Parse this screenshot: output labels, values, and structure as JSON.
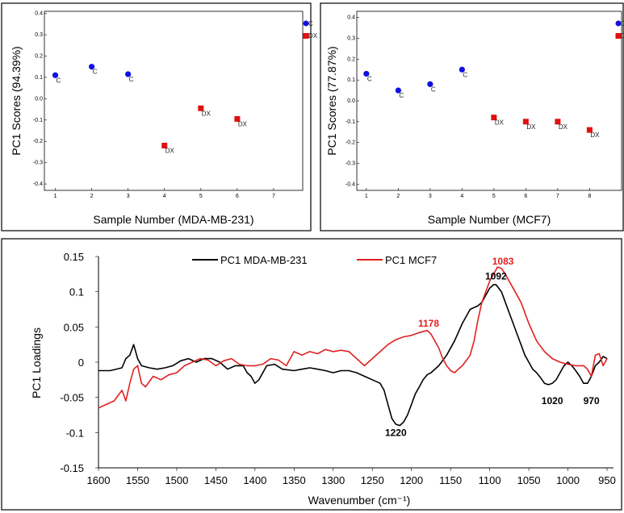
{
  "colors": {
    "control": "#1010e0",
    "dx": "#e01010",
    "mda": "#000000",
    "mcf7": "#e02020"
  },
  "chart_data": [
    {
      "type": "scatter",
      "xlabel": "Sample Number (MDA-MB-231)",
      "ylabel": "PC1 Scores (94.39%)",
      "xlim": [
        0.7,
        7.8
      ],
      "ylim": [
        -0.43,
        0.41
      ],
      "xticks": [
        "1",
        "2",
        "3",
        "4",
        "5",
        "6",
        "7"
      ],
      "yticks": [
        "0.4",
        "0.3",
        "0.2",
        "0.1",
        "0.0",
        "-0.1",
        "-0.2",
        "-0.3",
        "-0.4"
      ],
      "series": [
        {
          "name": "C",
          "x": [
            1,
            2,
            3
          ],
          "y": [
            0.11,
            0.15,
            0.115
          ]
        },
        {
          "name": "DX",
          "x": [
            4,
            5,
            6
          ],
          "y": [
            -0.22,
            -0.045,
            -0.095
          ]
        }
      ],
      "point_labels": {
        "C": "C",
        "DX": "DX"
      }
    },
    {
      "type": "scatter",
      "xlabel": "Sample Number (MCF7)",
      "ylabel": "PC1 Scores (77.87%)",
      "xlim": [
        0.7,
        8.8
      ],
      "ylim": [
        -0.43,
        0.43
      ],
      "xticks": [
        "1",
        "2",
        "3",
        "4",
        "5",
        "6",
        "7",
        "8"
      ],
      "yticks": [
        "0.4",
        "0.3",
        "0.2",
        "0.1",
        "0.0",
        "-0.1",
        "-0.2",
        "-0.3",
        "-0.4"
      ],
      "series": [
        {
          "name": "C",
          "x": [
            1,
            2,
            3,
            4
          ],
          "y": [
            0.13,
            0.05,
            0.08,
            0.15
          ]
        },
        {
          "name": "DX",
          "x": [
            5,
            6,
            7,
            8
          ],
          "y": [
            -0.08,
            -0.1,
            -0.1,
            -0.14
          ]
        }
      ],
      "point_labels": {
        "C": "C",
        "DX": "DX"
      }
    },
    {
      "type": "line",
      "xlabel": "Wavenumber (cm⁻¹)",
      "ylabel": "PC1 Loadings",
      "xlim": [
        1600,
        950
      ],
      "ylim": [
        -0.15,
        0.15
      ],
      "xticks": [
        "1600",
        "1550",
        "1500",
        "1450",
        "1400",
        "1350",
        "1300",
        "1250",
        "1200",
        "1150",
        "1100",
        "1050",
        "1000",
        "950"
      ],
      "yticks": [
        "0.15",
        "0.1",
        "0.05",
        "0",
        "-0.05",
        "-0.1",
        "-0.15"
      ],
      "legend_position": "top",
      "series": [
        {
          "name": "PC1 MDA-MB-231",
          "x": [
            1600,
            1585,
            1570,
            1565,
            1560,
            1555,
            1550,
            1545,
            1535,
            1525,
            1515,
            1505,
            1495,
            1485,
            1475,
            1465,
            1455,
            1445,
            1435,
            1425,
            1415,
            1410,
            1405,
            1400,
            1395,
            1385,
            1375,
            1365,
            1350,
            1340,
            1330,
            1320,
            1310,
            1300,
            1290,
            1280,
            1270,
            1260,
            1250,
            1240,
            1235,
            1230,
            1225,
            1220,
            1215,
            1210,
            1205,
            1200,
            1195,
            1190,
            1185,
            1180,
            1175,
            1165,
            1155,
            1145,
            1135,
            1125,
            1115,
            1110,
            1105,
            1100,
            1095,
            1092,
            1085,
            1080,
            1075,
            1070,
            1065,
            1060,
            1055,
            1050,
            1045,
            1040,
            1035,
            1030,
            1025,
            1020,
            1015,
            1010,
            1005,
            1000,
            995,
            990,
            985,
            980,
            975,
            970,
            965,
            960,
            955,
            950
          ],
          "y": [
            -0.012,
            -0.012,
            -0.008,
            0.005,
            0.01,
            0.025,
            0.005,
            -0.005,
            -0.008,
            -0.01,
            -0.008,
            -0.005,
            0.002,
            0.005,
            0.0,
            0.005,
            0.005,
            0.0,
            -0.01,
            -0.005,
            -0.005,
            -0.015,
            -0.02,
            -0.03,
            -0.025,
            -0.005,
            -0.003,
            -0.01,
            -0.012,
            -0.01,
            -0.008,
            -0.01,
            -0.012,
            -0.015,
            -0.012,
            -0.012,
            -0.015,
            -0.02,
            -0.025,
            -0.03,
            -0.04,
            -0.06,
            -0.08,
            -0.088,
            -0.09,
            -0.085,
            -0.075,
            -0.06,
            -0.045,
            -0.035,
            -0.025,
            -0.018,
            -0.015,
            -0.005,
            0.01,
            0.03,
            0.055,
            0.075,
            0.08,
            0.085,
            0.095,
            0.105,
            0.11,
            0.11,
            0.1,
            0.085,
            0.07,
            0.055,
            0.04,
            0.025,
            0.01,
            0.0,
            -0.01,
            -0.015,
            -0.022,
            -0.03,
            -0.032,
            -0.03,
            -0.025,
            -0.015,
            -0.005,
            0.0,
            -0.005,
            -0.012,
            -0.02,
            -0.03,
            -0.03,
            -0.02,
            -0.005,
            0.0,
            0.008,
            0.005
          ]
        },
        {
          "name": "PC1 MCF7",
          "x": [
            1600,
            1590,
            1580,
            1570,
            1565,
            1560,
            1555,
            1550,
            1545,
            1540,
            1530,
            1520,
            1510,
            1500,
            1490,
            1480,
            1470,
            1460,
            1450,
            1440,
            1430,
            1420,
            1410,
            1400,
            1390,
            1380,
            1370,
            1360,
            1350,
            1340,
            1330,
            1320,
            1310,
            1300,
            1290,
            1280,
            1270,
            1260,
            1250,
            1240,
            1230,
            1220,
            1210,
            1200,
            1190,
            1180,
            1175,
            1165,
            1160,
            1155,
            1150,
            1145,
            1140,
            1135,
            1130,
            1125,
            1120,
            1115,
            1110,
            1105,
            1100,
            1095,
            1090,
            1085,
            1080,
            1075,
            1070,
            1060,
            1050,
            1040,
            1030,
            1020,
            1010,
            1000,
            990,
            980,
            975,
            970,
            965,
            960,
            955,
            950
          ],
          "y": [
            -0.065,
            -0.06,
            -0.055,
            -0.04,
            -0.055,
            -0.03,
            -0.01,
            -0.005,
            -0.03,
            -0.035,
            -0.02,
            -0.025,
            -0.018,
            -0.015,
            -0.005,
            0.0,
            0.005,
            0.003,
            -0.005,
            0.002,
            0.005,
            -0.003,
            -0.005,
            -0.005,
            -0.003,
            0.005,
            0.003,
            -0.005,
            0.015,
            0.01,
            0.015,
            0.012,
            0.018,
            0.015,
            0.017,
            0.015,
            0.005,
            -0.005,
            0.005,
            0.015,
            0.025,
            0.032,
            0.036,
            0.038,
            0.042,
            0.045,
            0.04,
            0.02,
            0.005,
            -0.005,
            -0.012,
            -0.015,
            -0.01,
            -0.005,
            0.002,
            0.01,
            0.03,
            0.06,
            0.085,
            0.1,
            0.115,
            0.125,
            0.135,
            0.133,
            0.125,
            0.115,
            0.105,
            0.085,
            0.055,
            0.03,
            0.015,
            0.005,
            0.0,
            -0.003,
            -0.005,
            -0.005,
            -0.01,
            -0.02,
            0.01,
            0.012,
            -0.005,
            0.005
          ]
        }
      ],
      "annotations": [
        {
          "text": "1220",
          "x": 1220,
          "y": -0.1,
          "color": "#000000"
        },
        {
          "text": "1178",
          "x": 1178,
          "y": 0.055,
          "color": "#e02020"
        },
        {
          "text": "1092",
          "x": 1092,
          "y": 0.122,
          "color": "#000000"
        },
        {
          "text": "1083",
          "x": 1083,
          "y": 0.143,
          "color": "#e02020"
        },
        {
          "text": "1020",
          "x": 1020,
          "y": -0.055,
          "color": "#000000"
        },
        {
          "text": "970",
          "x": 970,
          "y": -0.055,
          "color": "#000000"
        }
      ]
    }
  ]
}
